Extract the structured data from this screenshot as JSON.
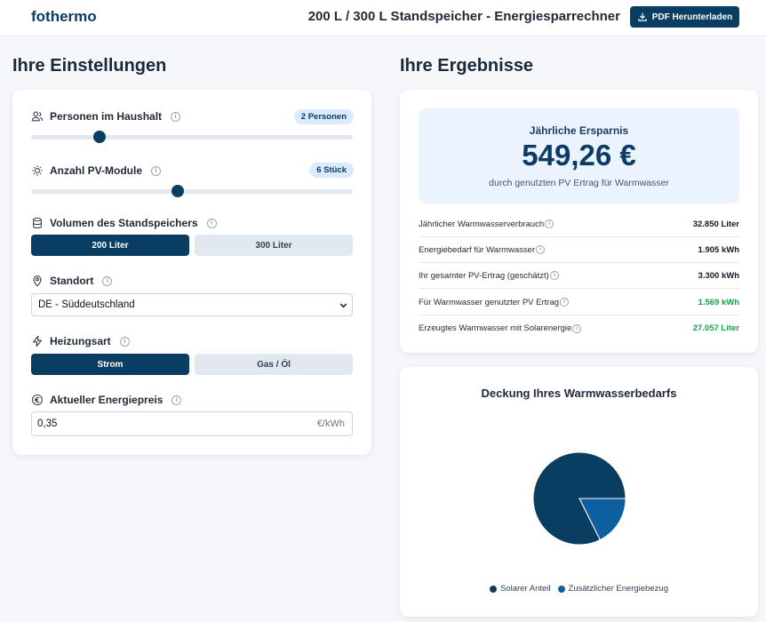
{
  "header": {
    "brand": "fothermo",
    "title": "200 L / 300 L Standspeicher - Energiesparrechner",
    "pdf_button": "PDF Herunterladen"
  },
  "settings": {
    "heading": "Ihre Einstellungen",
    "persons": {
      "label": "Personen im Haushalt",
      "badge": "2 Personen",
      "value": 2,
      "min": 1,
      "max": 6
    },
    "pv_modules": {
      "label": "Anzahl PV-Module",
      "badge": "6 Stück",
      "value": 6,
      "min": 1,
      "max": 12
    },
    "volume": {
      "label": "Volumen des Standspeichers",
      "options": [
        "200 Liter",
        "300 Liter"
      ],
      "selected": "200 Liter"
    },
    "location": {
      "label": "Standort",
      "value": "DE - Süddeutschland"
    },
    "heating": {
      "label": "Heizungsart",
      "options": [
        "Strom",
        "Gas / Öl"
      ],
      "selected": "Strom"
    },
    "price": {
      "label": "Aktueller Energiepreis",
      "value": "0,35",
      "unit": "€/kWh"
    }
  },
  "results": {
    "heading": "Ihre Ergebnisse",
    "savings": {
      "title": "Jährliche Ersparnis",
      "amount": "549,26 €",
      "subtitle": "durch genutzten PV Ertrag für Warmwasser"
    },
    "rows": [
      {
        "label": "Jährlicher Warmwasserverbrauch",
        "value": "32.850 Liter"
      },
      {
        "label": "Energiebedarf für Warmwasser",
        "value": "1.905 kWh"
      },
      {
        "label": "Ihr gesamter PV-Ertrag (geschätzt)",
        "value": "3.300 kWh"
      },
      {
        "label": "Für Warmwasser genutzter PV Ertrag",
        "value": "1.569 kWh"
      },
      {
        "label": "Erzeugtes Warmwasser mit Solarenergie",
        "value": "27.057 Liter"
      }
    ],
    "green_color": "#16a34a"
  },
  "coverage": {
    "title": "Deckung Ihres Warmwasserbedarfs",
    "legend": [
      "Solarer Anteil",
      "Zusätzlicher Energiebezug"
    ]
  },
  "colors": {
    "primary": "#0a3d62",
    "secondary": "#0e5fa0",
    "accent_bg": "#eaf3fe"
  },
  "chart_data": {
    "type": "pie",
    "categories": [
      "Solarer Anteil",
      "Zusätzlicher Energiebezug"
    ],
    "values": [
      1569,
      336
    ],
    "colors": [
      "#0a3d62",
      "#0e5fa0"
    ],
    "legend_position": "bottom"
  }
}
